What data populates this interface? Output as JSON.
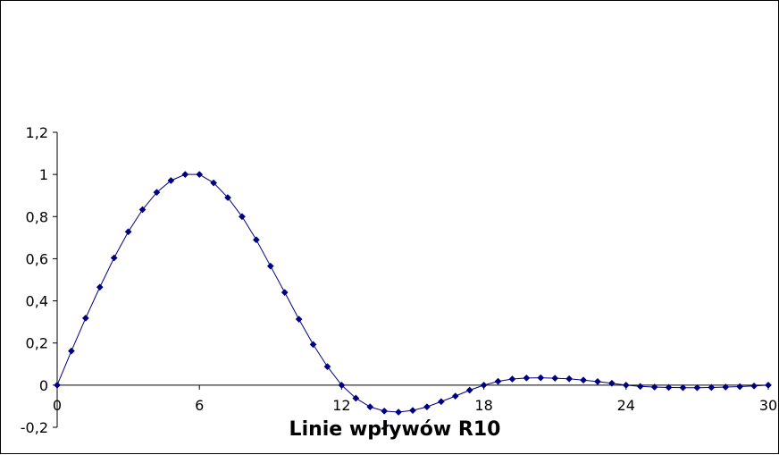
{
  "chart_data": {
    "type": "line",
    "title": "",
    "xlabel": "Linie wpływów R10",
    "ylabel": "",
    "xlim": [
      0,
      30
    ],
    "ylim": [
      -0.2,
      1.2
    ],
    "x_ticks": [
      {
        "value": 0,
        "label": "0"
      },
      {
        "value": 6,
        "label": "6"
      },
      {
        "value": 12,
        "label": "12"
      },
      {
        "value": 18,
        "label": "18"
      },
      {
        "value": 24,
        "label": "24"
      },
      {
        "value": 30,
        "label": "30"
      }
    ],
    "y_ticks": [
      {
        "value": 1.2,
        "label": "1,2"
      },
      {
        "value": 1.0,
        "label": "1"
      },
      {
        "value": 0.8,
        "label": "0,8"
      },
      {
        "value": 0.6,
        "label": "0,6"
      },
      {
        "value": 0.4,
        "label": "0,4"
      },
      {
        "value": 0.2,
        "label": "0,2"
      },
      {
        "value": 0.0,
        "label": "0"
      },
      {
        "value": -0.2,
        "label": "-0,2"
      }
    ],
    "grid": false,
    "legend": "none",
    "series": [
      {
        "color": "#000080",
        "marker": "diamond",
        "x": [
          0,
          0.6,
          1.2,
          1.8,
          2.4,
          3.0,
          3.6,
          4.2,
          4.8,
          5.4,
          6.0,
          6.6,
          7.2,
          7.8,
          8.4,
          9.0,
          9.6,
          10.2,
          10.8,
          11.4,
          12.0,
          12.6,
          13.2,
          13.8,
          14.4,
          15.0,
          15.6,
          16.2,
          16.8,
          17.4,
          18.0,
          18.6,
          19.2,
          19.8,
          20.4,
          21.0,
          21.6,
          22.2,
          22.8,
          23.4,
          24.0,
          24.6,
          25.2,
          25.8,
          26.4,
          27.0,
          27.6,
          28.2,
          28.8,
          29.4,
          30.0
        ],
        "y": [
          0,
          0.162,
          0.318,
          0.465,
          0.604,
          0.728,
          0.833,
          0.915,
          0.971,
          1.0,
          1.0,
          0.96,
          0.89,
          0.8,
          0.69,
          0.565,
          0.44,
          0.313,
          0.193,
          0.088,
          0.0,
          -0.062,
          -0.103,
          -0.123,
          -0.128,
          -0.12,
          -0.103,
          -0.078,
          -0.052,
          -0.024,
          0.0,
          0.018,
          0.029,
          0.034,
          0.035,
          0.033,
          0.03,
          0.024,
          0.017,
          0.009,
          0.0,
          -0.006,
          -0.009,
          -0.011,
          -0.012,
          -0.012,
          -0.011,
          -0.009,
          -0.007,
          -0.004,
          0.0
        ]
      }
    ]
  }
}
